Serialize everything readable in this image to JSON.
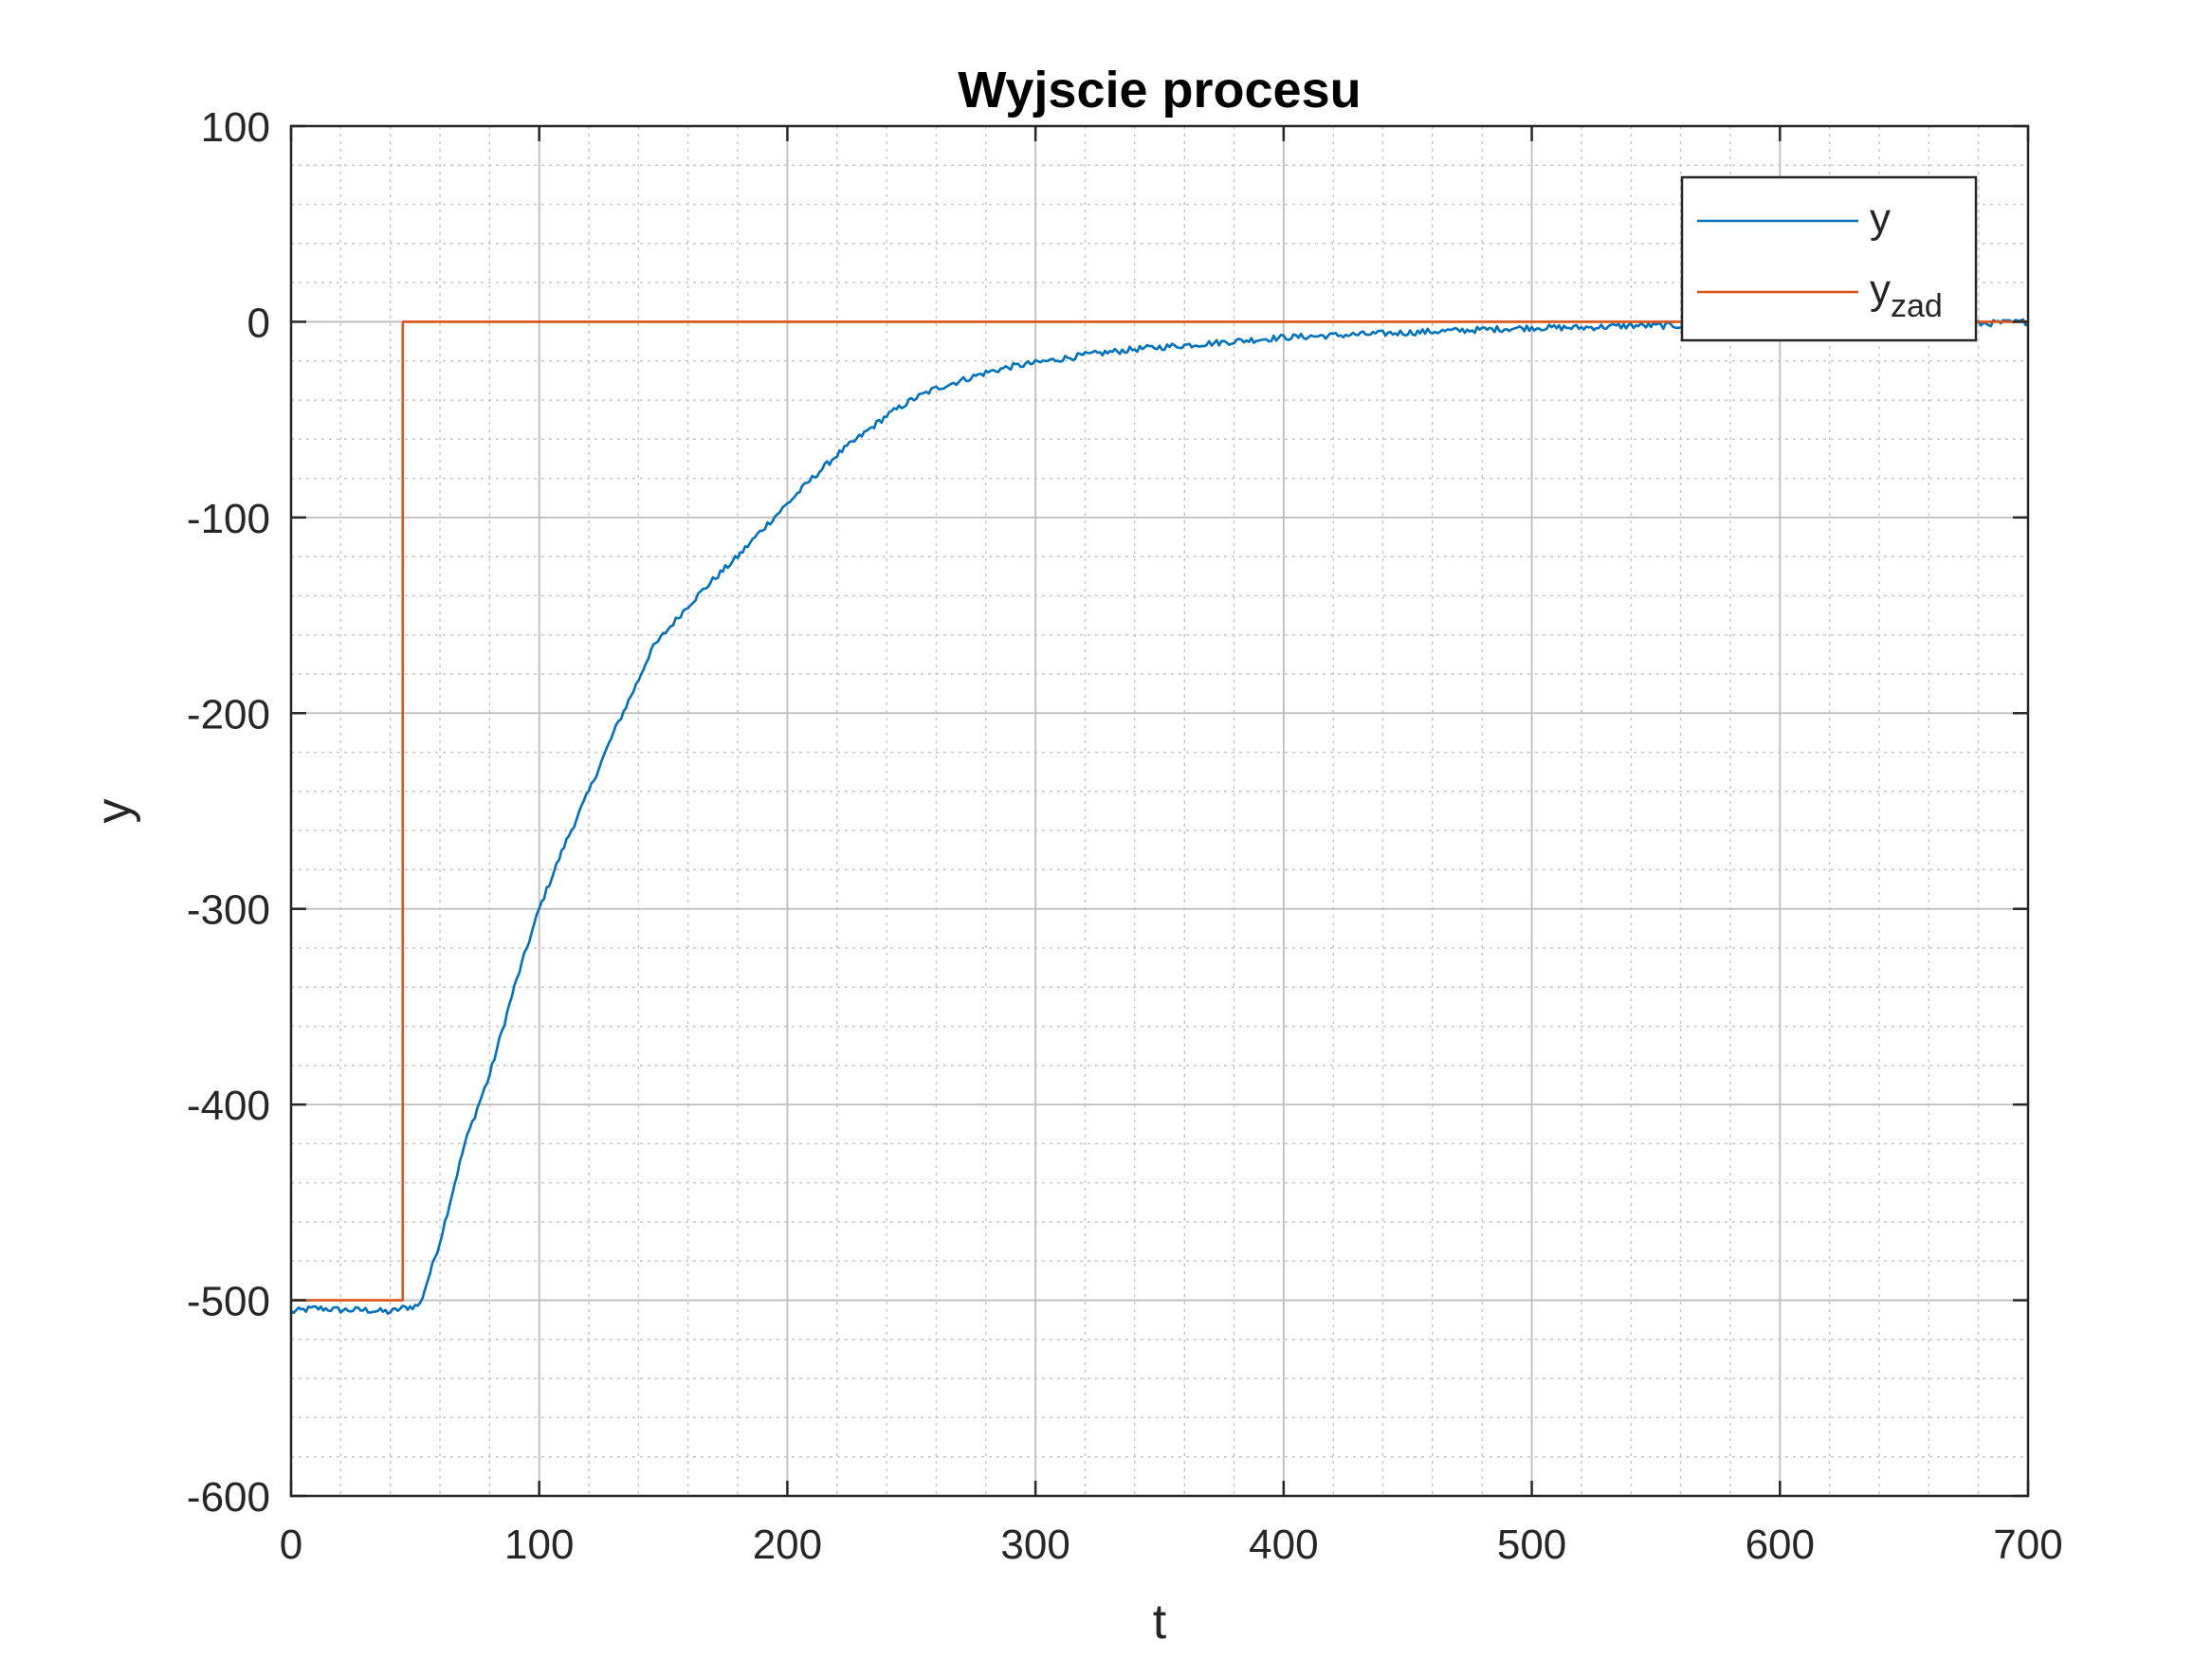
{
  "chart_data": {
    "type": "line",
    "title": "Wyjscie procesu",
    "xlabel": "t",
    "ylabel": "y",
    "xlim": [
      0,
      700
    ],
    "ylim": [
      -600,
      100
    ],
    "xticks": [
      0,
      100,
      200,
      300,
      400,
      500,
      600,
      700
    ],
    "yticks": [
      -600,
      -500,
      -400,
      -300,
      -200,
      -100,
      0,
      100
    ],
    "xtick_labels": [
      "0",
      "100",
      "200",
      "300",
      "400",
      "500",
      "600",
      "700"
    ],
    "ytick_labels": [
      "-600",
      "-500",
      "-400",
      "-300",
      "-200",
      "-100",
      "0",
      "100"
    ],
    "grid": true,
    "minor_grid": true,
    "legend": {
      "placement": "top-right",
      "entries": [
        {
          "label": "y",
          "sub": ""
        },
        {
          "label": "y",
          "sub": "zad"
        }
      ]
    },
    "series": [
      {
        "name": "y",
        "color": "#0072BD",
        "x": [
          0,
          10,
          20,
          30,
          40,
          45,
          50,
          52,
          55,
          60,
          65,
          70,
          75,
          80,
          90,
          100,
          110,
          120,
          130,
          140,
          145,
          150,
          160,
          170,
          180,
          190,
          200,
          210,
          220,
          230,
          240,
          250,
          260,
          270,
          280,
          290,
          300,
          320,
          340,
          360,
          380,
          400,
          420,
          440,
          460,
          480,
          500,
          520,
          540,
          560,
          580,
          600,
          620,
          640,
          660,
          680,
          700
        ],
        "y": [
          -506,
          -504,
          -505,
          -505,
          -506,
          -504,
          -503,
          -502,
          -490,
          -470,
          -445,
          -420,
          -402,
          -385,
          -340,
          -300,
          -268,
          -240,
          -210,
          -183,
          -168,
          -160,
          -145,
          -132,
          -120,
          -106,
          -93,
          -80,
          -68,
          -58,
          -48,
          -40,
          -34,
          -30,
          -26,
          -23,
          -21,
          -17,
          -14,
          -12,
          -10,
          -8,
          -7,
          -6,
          -5,
          -4,
          -3,
          -3,
          -2,
          -2,
          -1,
          -1,
          -1,
          0,
          -1,
          -1,
          0
        ]
      },
      {
        "name": "y_zad",
        "color": "#D95319",
        "x": [
          0,
          45,
          45,
          700
        ],
        "y": [
          -500,
          -500,
          0,
          0
        ]
      }
    ]
  }
}
